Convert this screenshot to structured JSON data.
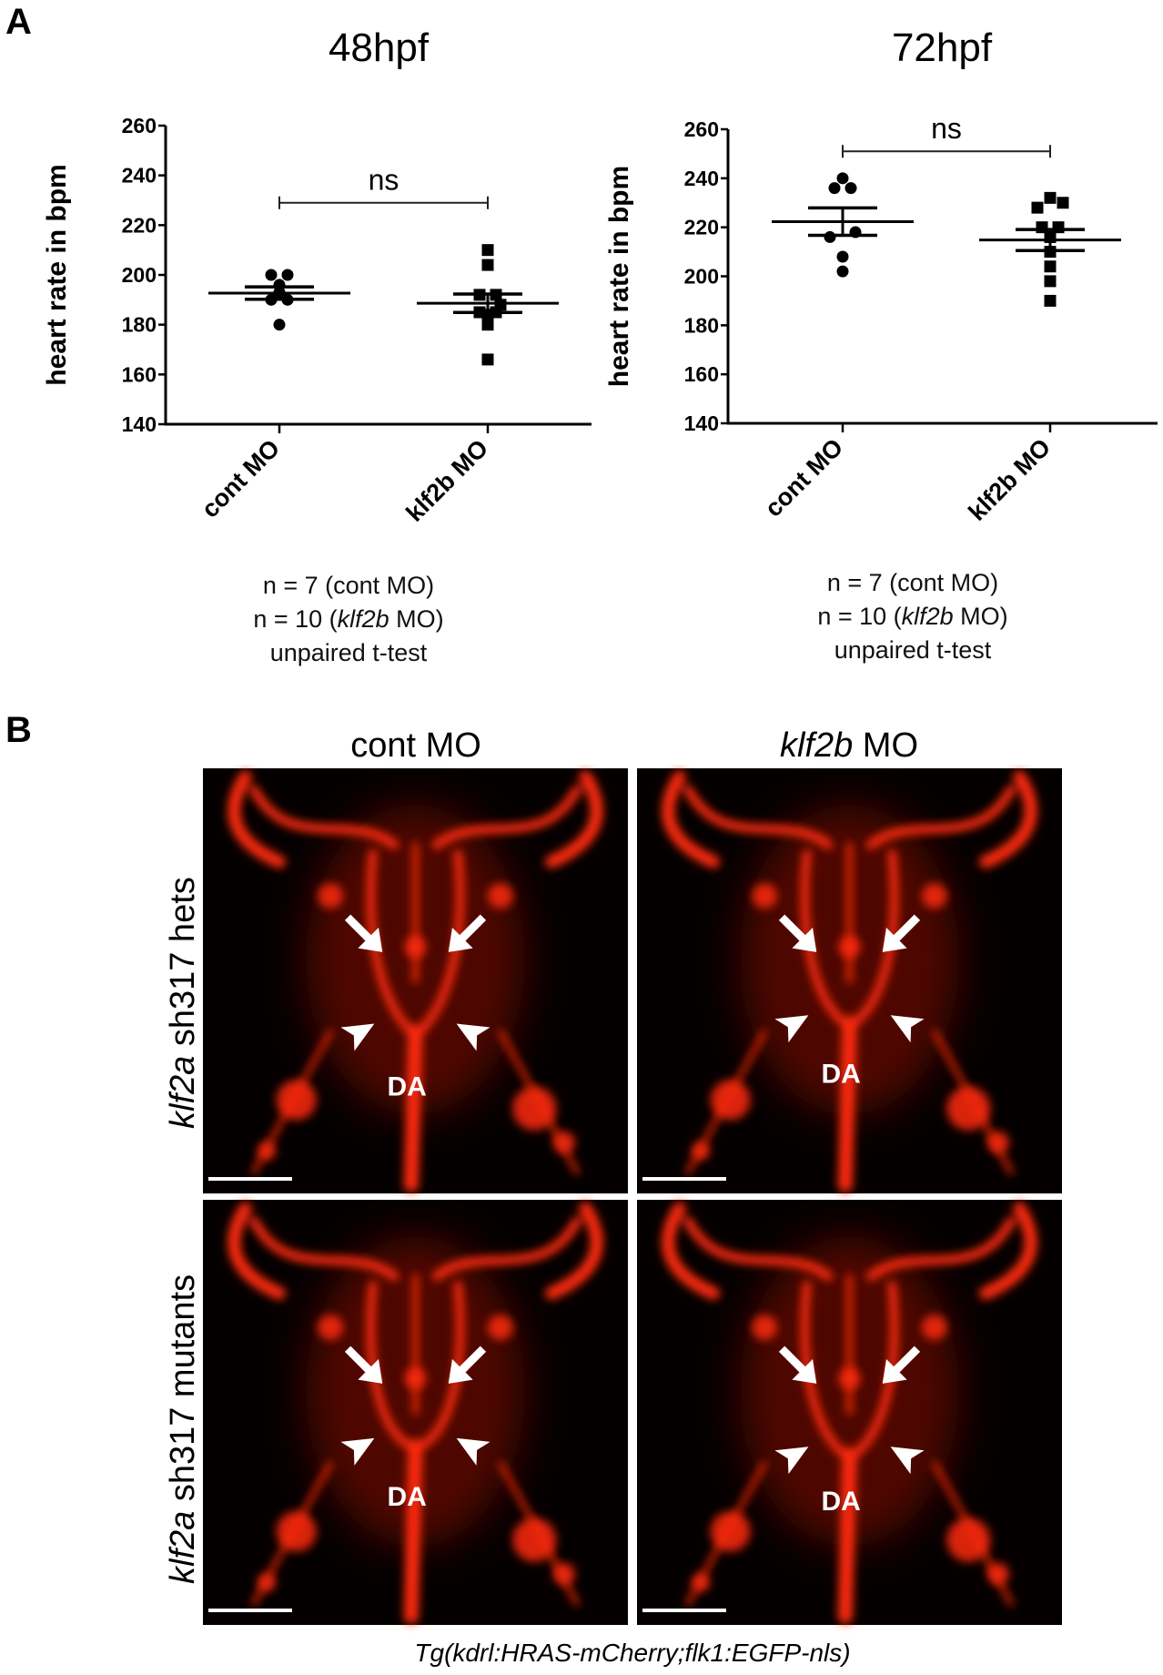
{
  "panel_a_letter": "A",
  "panel_b_letter": "B",
  "chart_data": [
    {
      "type": "scatter",
      "title": "48hpf",
      "ylabel": "heart rate in bpm",
      "xlabel": "",
      "categories": [
        "cont MO",
        "klf2b MO"
      ],
      "ylim": [
        140,
        260
      ],
      "yticks": [
        140,
        160,
        180,
        200,
        220,
        240,
        260
      ],
      "grid": false,
      "series": [
        {
          "name": "cont MO",
          "marker": "circle",
          "values": [
            200,
            200,
            196,
            193,
            190,
            190,
            180
          ],
          "mean": 192.7,
          "sem": 2.5
        },
        {
          "name": "klf2b MO",
          "marker": "square",
          "values": [
            210,
            204,
            192,
            192,
            188,
            185,
            185,
            184,
            180,
            166
          ],
          "mean": 188.6,
          "sem": 3.7
        }
      ],
      "significance": {
        "label": "ns",
        "y": 229
      },
      "notes": {
        "n_cont": "n = 7 (cont MO)",
        "n_klf_pre": "n = 10 (",
        "n_klf_gene": "klf2b",
        "n_klf_post": " MO)",
        "test": "unpaired t-test"
      }
    },
    {
      "type": "scatter",
      "title": "72hpf",
      "ylabel": "heart rate in bpm",
      "xlabel": "",
      "categories": [
        "cont MO",
        "klf2b MO"
      ],
      "ylim": [
        140,
        260
      ],
      "yticks": [
        140,
        160,
        180,
        200,
        220,
        240,
        260
      ],
      "grid": false,
      "series": [
        {
          "name": "cont MO",
          "marker": "circle",
          "values": [
            240,
            236,
            236,
            218,
            216,
            208,
            202
          ],
          "mean": 222.3,
          "sem": 5.6
        },
        {
          "name": "klf2b MO",
          "marker": "square",
          "values": [
            232,
            230,
            228,
            220,
            220,
            216,
            210,
            204,
            198,
            190
          ],
          "mean": 214.8,
          "sem": 4.3
        }
      ],
      "significance": {
        "label": "ns",
        "y": 251
      },
      "notes": {
        "n_cont": "n = 7 (cont MO)",
        "n_klf_pre": "n = 10 (",
        "n_klf_gene": "klf2b",
        "n_klf_post": " MO)",
        "test": "unpaired t-test"
      }
    }
  ],
  "panel_b": {
    "col_headers": [
      {
        "gene": "",
        "text": "cont MO"
      },
      {
        "gene": "klf2b",
        "text": " MO"
      }
    ],
    "row_labels": [
      {
        "gene": "klf2a",
        "text": " sh317 hets"
      },
      {
        "gene": "klf2a",
        "text": " sh317 mutants"
      }
    ],
    "vessel_label": "DA",
    "caption": "Tg(kdrl:HRAS-mCherry;flk1:EGFP-nls)",
    "image_color": "#ff2a10"
  }
}
